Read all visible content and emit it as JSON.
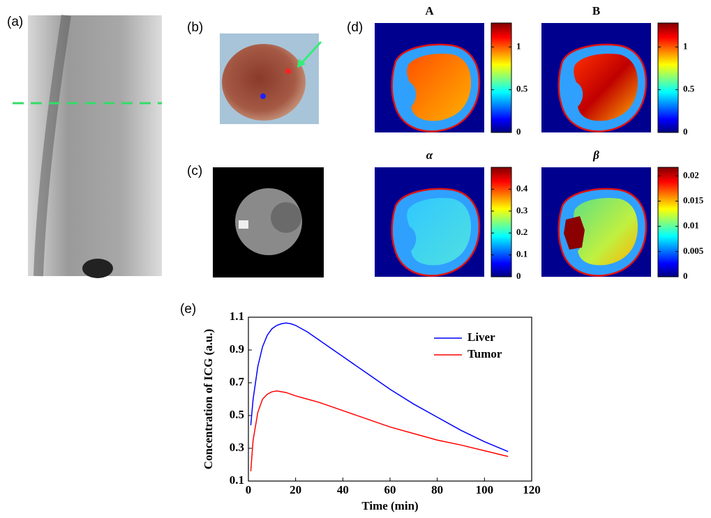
{
  "panels": {
    "a": {
      "label": "(a)"
    },
    "b": {
      "label": "(b)"
    },
    "c": {
      "label": "(c)"
    },
    "d": {
      "label": "(d)",
      "maps": [
        {
          "title": "A",
          "clim": [
            0,
            1.28
          ],
          "cticks": [
            0,
            0.5,
            1
          ]
        },
        {
          "title": "B",
          "clim": [
            0,
            1.28
          ],
          "cticks": [
            0,
            0.5,
            1
          ]
        },
        {
          "title": "α",
          "clim": [
            0,
            0.5
          ],
          "cticks": [
            0,
            0.1,
            0.2,
            0.3,
            0.4
          ]
        },
        {
          "title": "β",
          "clim": [
            0,
            0.0217
          ],
          "cticks": [
            0,
            0.005,
            0.01,
            0.015,
            0.02
          ]
        }
      ]
    },
    "e": {
      "label": "(e)"
    }
  },
  "chart_data": {
    "type": "line",
    "xlabel": "Time (min)",
    "ylabel": "Concentration of ICG (a.u.)",
    "x": [
      1,
      2,
      4,
      6,
      8,
      10,
      12,
      14,
      16,
      18,
      20,
      25,
      30,
      40,
      50,
      60,
      70,
      80,
      90,
      100,
      110
    ],
    "series": [
      {
        "name": "Liver",
        "color": "#0000ff",
        "values": [
          0.44,
          0.6,
          0.8,
          0.92,
          0.99,
          1.03,
          1.05,
          1.06,
          1.065,
          1.06,
          1.05,
          1.01,
          0.96,
          0.86,
          0.76,
          0.66,
          0.57,
          0.49,
          0.41,
          0.34,
          0.28
        ]
      },
      {
        "name": "Tumor",
        "color": "#ff0000",
        "values": [
          0.16,
          0.35,
          0.52,
          0.6,
          0.63,
          0.645,
          0.65,
          0.645,
          0.64,
          0.63,
          0.62,
          0.6,
          0.58,
          0.53,
          0.48,
          0.43,
          0.39,
          0.35,
          0.32,
          0.285,
          0.25
        ]
      }
    ],
    "xlim": [
      0,
      120
    ],
    "xticks": [
      0,
      20,
      40,
      60,
      80,
      100,
      120
    ],
    "ylim": [
      0.1,
      1.1
    ],
    "yticks": [
      0.1,
      0.3,
      0.5,
      0.7,
      0.9,
      1.1
    ],
    "legend": "upper right"
  }
}
